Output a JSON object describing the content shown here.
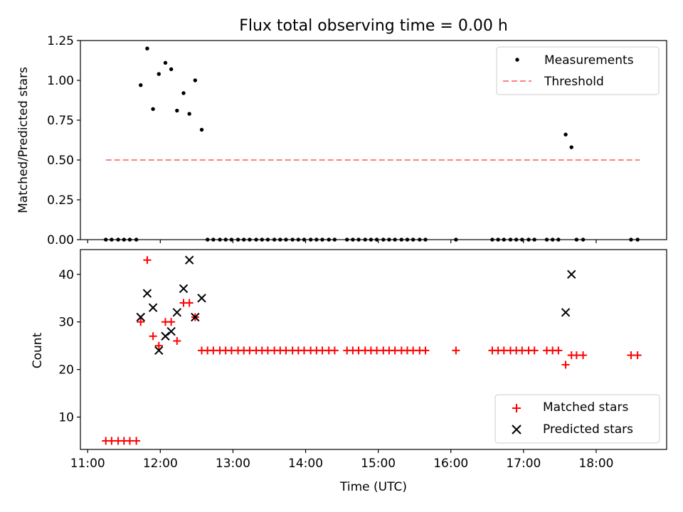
{
  "chart_data": [
    {
      "type": "scatter",
      "title": "Flux total observing time = 0.00 h",
      "xlabel": "",
      "ylabel": "Matched/Predicted stars",
      "ylim": [
        0,
        1.25
      ],
      "yticks": [
        "0.00",
        "0.25",
        "0.50",
        "0.75",
        "1.00",
        "1.25"
      ],
      "xlim": [
        10.9,
        18.97
      ],
      "xticks": [
        11,
        12,
        13,
        14,
        15,
        16,
        17,
        18
      ],
      "legend": {
        "position": "top-right",
        "entries": [
          "Measurements",
          "Threshold"
        ]
      },
      "series": [
        {
          "name": "Measurements",
          "style": "scatter-dot",
          "color": "#000000",
          "x": [
            11.25,
            11.33,
            11.42,
            11.5,
            11.58,
            11.67,
            11.73,
            11.82,
            11.9,
            11.98,
            12.07,
            12.15,
            12.23,
            12.32,
            12.4,
            12.48,
            12.57,
            12.65,
            12.73,
            12.82,
            12.9,
            12.98,
            13.07,
            13.15,
            13.23,
            13.32,
            13.4,
            13.48,
            13.57,
            13.65,
            13.73,
            13.82,
            13.9,
            13.98,
            14.07,
            14.15,
            14.23,
            14.32,
            14.4,
            14.57,
            14.65,
            14.73,
            14.82,
            14.9,
            14.98,
            15.07,
            15.15,
            15.23,
            15.32,
            15.4,
            15.48,
            15.57,
            15.65,
            16.07,
            16.57,
            16.65,
            16.73,
            16.82,
            16.9,
            16.98,
            17.07,
            17.15,
            17.32,
            17.4,
            17.48,
            17.58,
            17.66,
            17.73,
            17.82,
            18.48,
            18.57
          ],
          "y": [
            0,
            0,
            0,
            0,
            0,
            0,
            0.97,
            1.2,
            0.82,
            1.04,
            1.11,
            1.07,
            0.81,
            0.92,
            0.79,
            1.0,
            0.69,
            0,
            0,
            0,
            0,
            0,
            0,
            0,
            0,
            0,
            0,
            0,
            0,
            0,
            0,
            0,
            0,
            0,
            0,
            0,
            0,
            0,
            0,
            0,
            0,
            0,
            0,
            0,
            0,
            0,
            0,
            0,
            0,
            0,
            0,
            0,
            0,
            0,
            0,
            0,
            0,
            0,
            0,
            0,
            0,
            0,
            0,
            0,
            0,
            0.66,
            0.58,
            0,
            0,
            0,
            0
          ]
        },
        {
          "name": "Threshold",
          "style": "dashed-line",
          "color": "#ff7f7f",
          "x": [
            11.25,
            18.6
          ],
          "y": [
            0.5,
            0.5
          ]
        }
      ]
    },
    {
      "type": "scatter",
      "title": "",
      "xlabel": "Time (UTC)",
      "ylabel": "Count",
      "ylim": [
        3.2,
        45.2
      ],
      "yticks": [
        "10",
        "20",
        "30",
        "40"
      ],
      "xlim": [
        10.9,
        18.97
      ],
      "xticks": [
        11,
        12,
        13,
        14,
        15,
        16,
        17,
        18
      ],
      "xticklabels": [
        "11:00",
        "12:00",
        "13:00",
        "14:00",
        "15:00",
        "16:00",
        "17:00",
        "18:00"
      ],
      "legend": {
        "position": "bottom-right",
        "entries": [
          "Matched stars",
          "Predicted stars"
        ]
      },
      "series": [
        {
          "name": "Matched stars",
          "marker": "plus",
          "color": "#ff0000",
          "x": [
            11.25,
            11.33,
            11.42,
            11.5,
            11.58,
            11.67,
            11.73,
            11.82,
            11.9,
            11.98,
            12.07,
            12.15,
            12.23,
            12.32,
            12.4,
            12.48,
            12.57,
            12.65,
            12.73,
            12.82,
            12.9,
            12.98,
            13.07,
            13.15,
            13.23,
            13.32,
            13.4,
            13.48,
            13.57,
            13.65,
            13.73,
            13.82,
            13.9,
            13.98,
            14.07,
            14.15,
            14.23,
            14.32,
            14.4,
            14.57,
            14.65,
            14.73,
            14.82,
            14.9,
            14.98,
            15.07,
            15.15,
            15.23,
            15.32,
            15.4,
            15.48,
            15.57,
            15.65,
            16.07,
            16.57,
            16.65,
            16.73,
            16.82,
            16.9,
            16.98,
            17.07,
            17.15,
            17.32,
            17.4,
            17.48,
            17.58,
            17.66,
            17.73,
            17.82,
            18.48,
            18.57
          ],
          "y": [
            5,
            5,
            5,
            5,
            5,
            5,
            30,
            43,
            27,
            25,
            30,
            30,
            26,
            34,
            34,
            31,
            24,
            24,
            24,
            24,
            24,
            24,
            24,
            24,
            24,
            24,
            24,
            24,
            24,
            24,
            24,
            24,
            24,
            24,
            24,
            24,
            24,
            24,
            24,
            24,
            24,
            24,
            24,
            24,
            24,
            24,
            24,
            24,
            24,
            24,
            24,
            24,
            24,
            24,
            24,
            24,
            24,
            24,
            24,
            24,
            24,
            24,
            24,
            24,
            24,
            21,
            23,
            23,
            23,
            23,
            23
          ]
        },
        {
          "name": "Predicted stars",
          "marker": "x",
          "color": "#000000",
          "x": [
            11.73,
            11.82,
            11.9,
            11.98,
            12.07,
            12.15,
            12.23,
            12.32,
            12.4,
            12.48,
            12.57,
            17.58,
            17.66
          ],
          "y": [
            31,
            36,
            33,
            24,
            27,
            28,
            32,
            37,
            43,
            31,
            35,
            32,
            40
          ]
        }
      ]
    }
  ]
}
